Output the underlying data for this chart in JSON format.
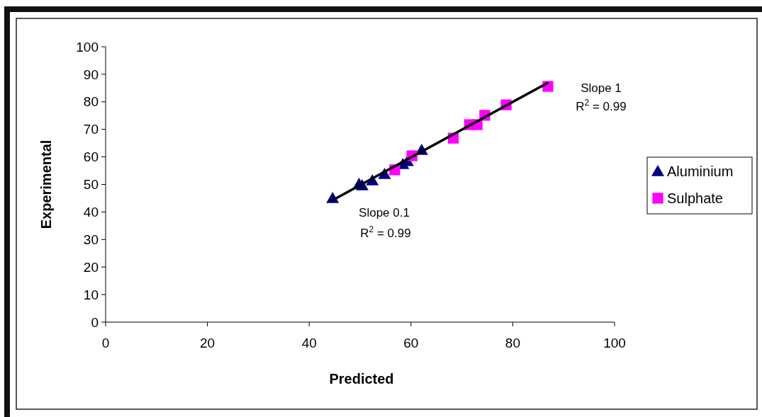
{
  "chart_data": {
    "type": "scatter",
    "xlabel": "Predicted",
    "ylabel": "Experimental",
    "xlim": [
      0,
      100
    ],
    "ylim": [
      0,
      100
    ],
    "xticks": [
      0,
      20,
      40,
      60,
      80,
      100
    ],
    "yticks": [
      0,
      10,
      20,
      30,
      40,
      50,
      60,
      70,
      80,
      90,
      100
    ],
    "grid": false,
    "legend": "right",
    "series": [
      {
        "name": "Aluminium",
        "color": "#000080",
        "marker": "triangle",
        "x": [
          44.6,
          49.8,
          50.4,
          52.4,
          54.8,
          58.4,
          59.3,
          62.1
        ],
        "values": [
          45.0,
          50.1,
          49.6,
          51.4,
          53.7,
          57.3,
          58.4,
          62.5
        ]
      },
      {
        "name": "Sulphate",
        "color": "#ff00ff",
        "marker": "square",
        "x": [
          56.8,
          60.2,
          68.3,
          71.5,
          73.0,
          74.5,
          78.7,
          86.9
        ],
        "values": [
          55.3,
          60.4,
          66.8,
          71.7,
          71.7,
          75.1,
          78.9,
          85.6
        ]
      },
      {
        "type": "line",
        "color": "#000000",
        "x": [
          44.6,
          86.8
        ],
        "values": [
          44.3,
          86.8
        ]
      }
    ],
    "annotations": [
      "Slope 1",
      "R$^{2}$ = 0.99",
      "Slope 0.1",
      "R$^{2}$ = 0.99"
    ]
  }
}
